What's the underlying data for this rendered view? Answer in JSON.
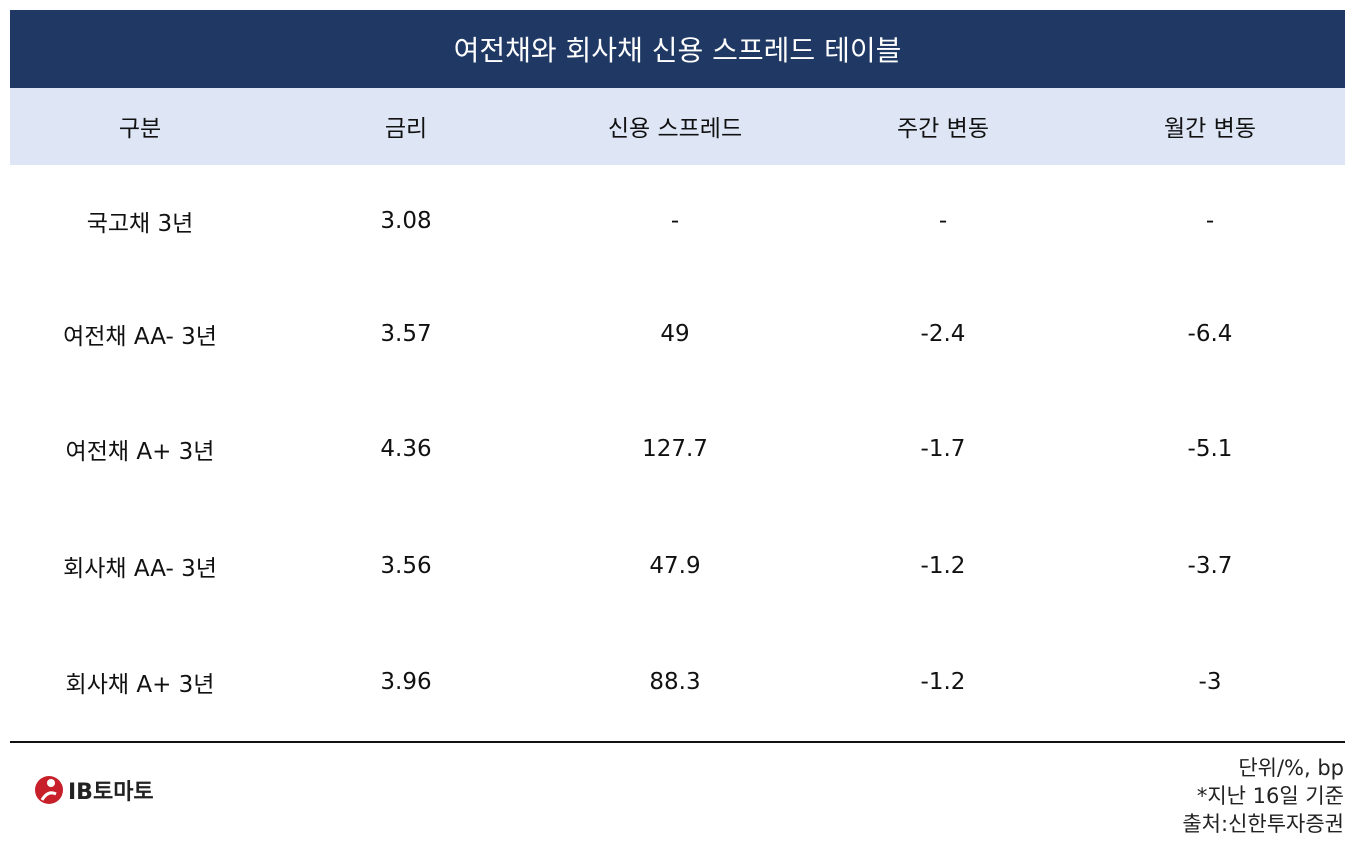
{
  "title": "여전채와 회사채 신용 스프레드 테이블",
  "table": {
    "header": [
      "구분",
      "금리",
      "신용 스프레드",
      "주간 변동",
      "월간 변동"
    ],
    "rows": [
      [
        "국고채 3년",
        "3.08",
        "-",
        "-",
        "-"
      ],
      [
        "여전채 AA- 3년",
        "3.57",
        "49",
        "-2.4",
        "-6.4"
      ],
      [
        "여전채 A+ 3년",
        "4.36",
        "127.7",
        "-1.7",
        "-5.1"
      ],
      [
        "회사채 AA- 3년",
        "3.56",
        "47.9",
        "-1.2",
        "-3.7"
      ],
      [
        "회사채 A+ 3년",
        "3.96",
        "88.3",
        "-1.2",
        "-3"
      ]
    ]
  },
  "notes": [
    "단위/%, bp",
    "*지난 16일 기준",
    "출처:신한투자증권"
  ],
  "logo": "IB토마토"
}
